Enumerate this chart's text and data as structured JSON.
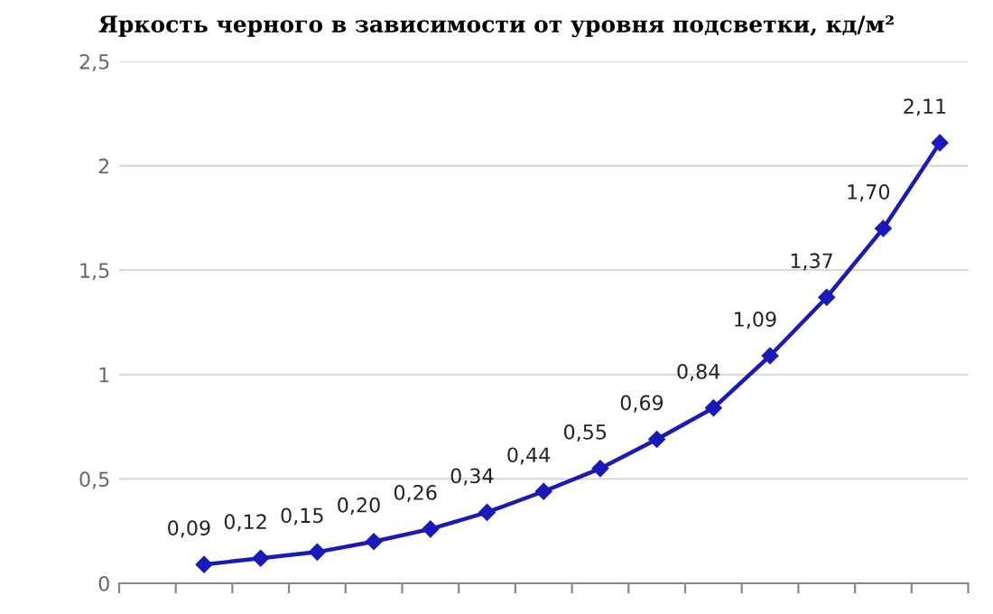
{
  "chart_data": {
    "type": "line",
    "title": "Яркость черного в зависимости от уровня подсветки, кд/м²",
    "categories": [
      null,
      null,
      null,
      null,
      null,
      null,
      null,
      null,
      null,
      null,
      null,
      null,
      null,
      null,
      null
    ],
    "series": [
      {
        "color": "#1a1ab8",
        "values": [
          null,
          0.09,
          0.12,
          0.15,
          0.2,
          0.26,
          0.34,
          0.44,
          0.55,
          0.69,
          0.84,
          1.09,
          1.37,
          1.7,
          2.11
        ],
        "value_labels": [
          null,
          "0,09",
          "0,12",
          "0,15",
          "0,20",
          "0,26",
          "0,34",
          "0,44",
          "0,55",
          "0,69",
          "0,84",
          "1,09",
          "1,37",
          "1,70",
          "2,11"
        ]
      }
    ],
    "ylim": [
      0,
      2.5
    ],
    "yticks": [
      0,
      {
        "value": 0.5,
        "label": "0,5"
      },
      1,
      {
        "value": 1.5,
        "label": "1,5"
      },
      2,
      {
        "value": 2.5,
        "label": "2,5"
      }
    ],
    "grid": "y",
    "legend": false,
    "marker": "diamond",
    "line_style": "solid"
  }
}
